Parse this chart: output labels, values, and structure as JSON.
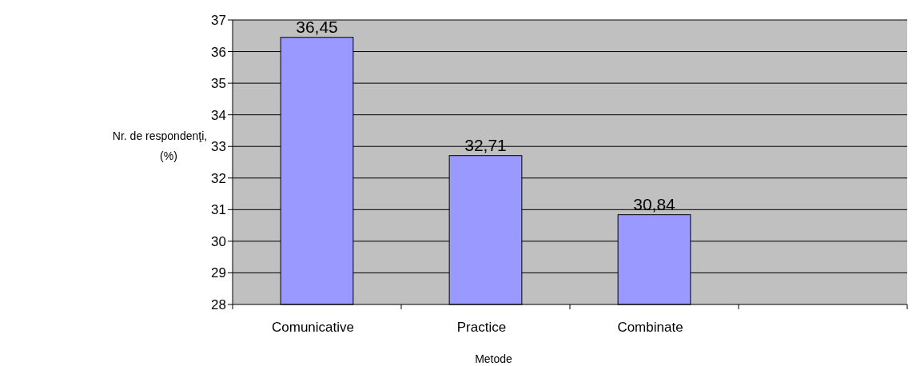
{
  "chart_data": {
    "type": "bar",
    "xlabel": "Metode",
    "ylabel": "Nr. de respondenţi, (%)",
    "categories": [
      "Comunicative",
      "Practice",
      "Combinate",
      null
    ],
    "values": [
      36.45,
      32.71,
      30.84,
      null
    ],
    "value_labels": [
      "36,45",
      "32,71",
      "30,84",
      null
    ],
    "color": "#9999ff",
    "ylim": [
      28,
      37
    ],
    "yticks": [
      28,
      29,
      30,
      31,
      32,
      33,
      34,
      35,
      36,
      37
    ],
    "grid": "y"
  }
}
